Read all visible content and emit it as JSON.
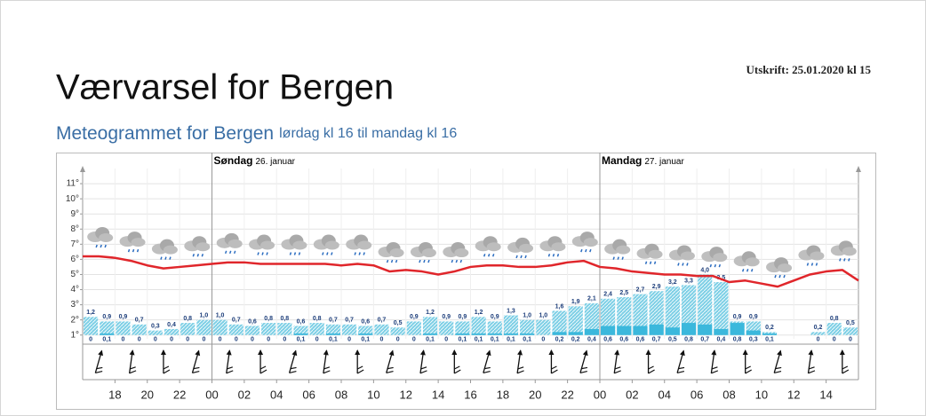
{
  "header": {
    "title": "Værvarsel for Bergen",
    "printed": "Utskrift: 25.01.2020 kl 15"
  },
  "subtitle": {
    "title": "Meteogrammet for Bergen",
    "range": "lørdag kl 16 til mandag kl 16"
  },
  "chart_data": {
    "type": "meteogram",
    "xlim": [
      0,
      48
    ],
    "xticks": [
      {
        "value": 2,
        "label": "18"
      },
      {
        "value": 4,
        "label": "20"
      },
      {
        "value": 6,
        "label": "22"
      },
      {
        "value": 8,
        "label": "00"
      },
      {
        "value": 10,
        "label": "02"
      },
      {
        "value": 12,
        "label": "04"
      },
      {
        "value": 14,
        "label": "06"
      },
      {
        "value": 16,
        "label": "08"
      },
      {
        "value": 18,
        "label": "10"
      },
      {
        "value": 20,
        "label": "12"
      },
      {
        "value": 22,
        "label": "14"
      },
      {
        "value": 24,
        "label": "16"
      },
      {
        "value": 26,
        "label": "18"
      },
      {
        "value": 28,
        "label": "20"
      },
      {
        "value": 30,
        "label": "22"
      },
      {
        "value": 32,
        "label": "00"
      },
      {
        "value": 34,
        "label": "02"
      },
      {
        "value": 36,
        "label": "04"
      },
      {
        "value": 38,
        "label": "06"
      },
      {
        "value": 40,
        "label": "08"
      },
      {
        "value": 42,
        "label": "10"
      },
      {
        "value": 44,
        "label": "12"
      },
      {
        "value": 46,
        "label": "14"
      }
    ],
    "ylim": [
      0.75,
      12
    ],
    "yticks": [
      {
        "value": 1,
        "label": "1°"
      },
      {
        "value": 2,
        "label": "2°"
      },
      {
        "value": 3,
        "label": "3°"
      },
      {
        "value": 4,
        "label": "4°"
      },
      {
        "value": 5,
        "label": "5°"
      },
      {
        "value": 6,
        "label": "6°"
      },
      {
        "value": 7,
        "label": "7°"
      },
      {
        "value": 8,
        "label": "8°"
      },
      {
        "value": 9,
        "label": "9°"
      },
      {
        "value": 10,
        "label": "10°"
      },
      {
        "value": 11,
        "label": "11°"
      }
    ],
    "grid": true,
    "days": [
      {
        "x": 8,
        "day": "Søndag",
        "date": "26. januar"
      },
      {
        "x": 32,
        "day": "Mandag",
        "date": "27. januar"
      }
    ],
    "temperature": {
      "color": "#e0262b",
      "x": [
        0,
        1,
        2,
        3,
        4,
        5,
        6,
        7,
        8,
        9,
        10,
        11,
        12,
        13,
        14,
        15,
        16,
        17,
        18,
        19,
        20,
        21,
        22,
        23,
        24,
        25,
        26,
        27,
        28,
        29,
        30,
        31,
        32,
        33,
        34,
        35,
        36,
        37,
        38,
        39,
        40,
        41,
        42,
        43,
        44,
        45,
        46,
        47,
        48
      ],
      "values": [
        6.2,
        6.2,
        6.1,
        5.9,
        5.6,
        5.4,
        5.5,
        5.6,
        5.7,
        5.8,
        5.8,
        5.7,
        5.7,
        5.7,
        5.7,
        5.7,
        5.6,
        5.7,
        5.6,
        5.2,
        5.3,
        5.2,
        5.0,
        5.2,
        5.5,
        5.6,
        5.6,
        5.5,
        5.5,
        5.6,
        5.8,
        5.9,
        5.5,
        5.4,
        5.2,
        5.1,
        5.0,
        5.0,
        4.9,
        4.9,
        4.5,
        4.6,
        4.4,
        4.2,
        4.6,
        5.0,
        5.2,
        5.3,
        4.6
      ]
    },
    "precipitation_max": {
      "color": "#7fd0e6",
      "values": [
        1.2,
        0.9,
        0.9,
        0.7,
        0.3,
        0.4,
        0.8,
        1.0,
        1.0,
        0.7,
        0.6,
        0.8,
        0.8,
        0.6,
        0.8,
        0.7,
        0.7,
        0.6,
        0.7,
        0.5,
        0.9,
        1.2,
        0.9,
        0.9,
        1.2,
        0.9,
        1.3,
        1.0,
        1.0,
        1.6,
        1.9,
        2.1,
        2.4,
        2.5,
        2.7,
        2.9,
        3.2,
        3.3,
        4.0,
        3.5,
        0.9,
        0.9,
        0.2,
        null,
        null,
        0.2,
        0.8,
        0.5
      ],
      "value_labels": [
        "1,2",
        "0,9",
        "0,9",
        "0,7",
        "0,3",
        "0,4",
        "0,8",
        "1,0",
        "1,0",
        "0,7",
        "0,6",
        "0,8",
        "0,8",
        "0,6",
        "0,8",
        "0,7",
        "0,7",
        "0,6",
        "0,7",
        "0,5",
        "0,9",
        "1,2",
        "0,9",
        "0,9",
        "1,2",
        "0,9",
        "1,3",
        "1,0",
        "1,0",
        "1,6",
        "1,9",
        "2,1",
        "2,4",
        "2,5",
        "2,7",
        "2,9",
        "3,2",
        "3,3",
        "4,0",
        "3,5",
        "0,9",
        "0,9",
        "0,2",
        null,
        null,
        "0,2",
        "0,8",
        "0,5"
      ]
    },
    "precipitation_min": {
      "color": "#3bb8dc",
      "values": [
        0,
        0.1,
        0,
        0,
        0,
        0,
        0,
        0,
        0,
        0,
        0,
        0,
        0,
        0.1,
        0,
        0.1,
        0,
        0.1,
        0,
        0,
        0,
        0.1,
        0,
        0.1,
        0.1,
        0.1,
        0.1,
        0.1,
        0,
        0.2,
        0.2,
        0.4,
        0.6,
        0.6,
        0.6,
        0.7,
        0.5,
        0.8,
        0.7,
        0.4,
        0.8,
        0.3,
        0.1,
        null,
        null,
        0,
        0,
        0
      ],
      "value_labels": [
        "0",
        "0,1",
        "0",
        "0",
        "0",
        "0",
        "0",
        "0",
        "0",
        "0",
        "0",
        "0",
        "0",
        "0,1",
        "0",
        "0,1",
        "0",
        "0,1",
        "0",
        "0",
        "0",
        "0,1",
        "0",
        "0,1",
        "0,1",
        "0,1",
        "0,1",
        "0,1",
        "0",
        "0,2",
        "0,2",
        "0,4",
        "0,6",
        "0,6",
        "0,6",
        "0,7",
        "0,5",
        "0,8",
        "0,7",
        "0,4",
        "0,8",
        "0,3",
        "0,1",
        null,
        null,
        "0",
        "0",
        "0"
      ]
    }
  }
}
